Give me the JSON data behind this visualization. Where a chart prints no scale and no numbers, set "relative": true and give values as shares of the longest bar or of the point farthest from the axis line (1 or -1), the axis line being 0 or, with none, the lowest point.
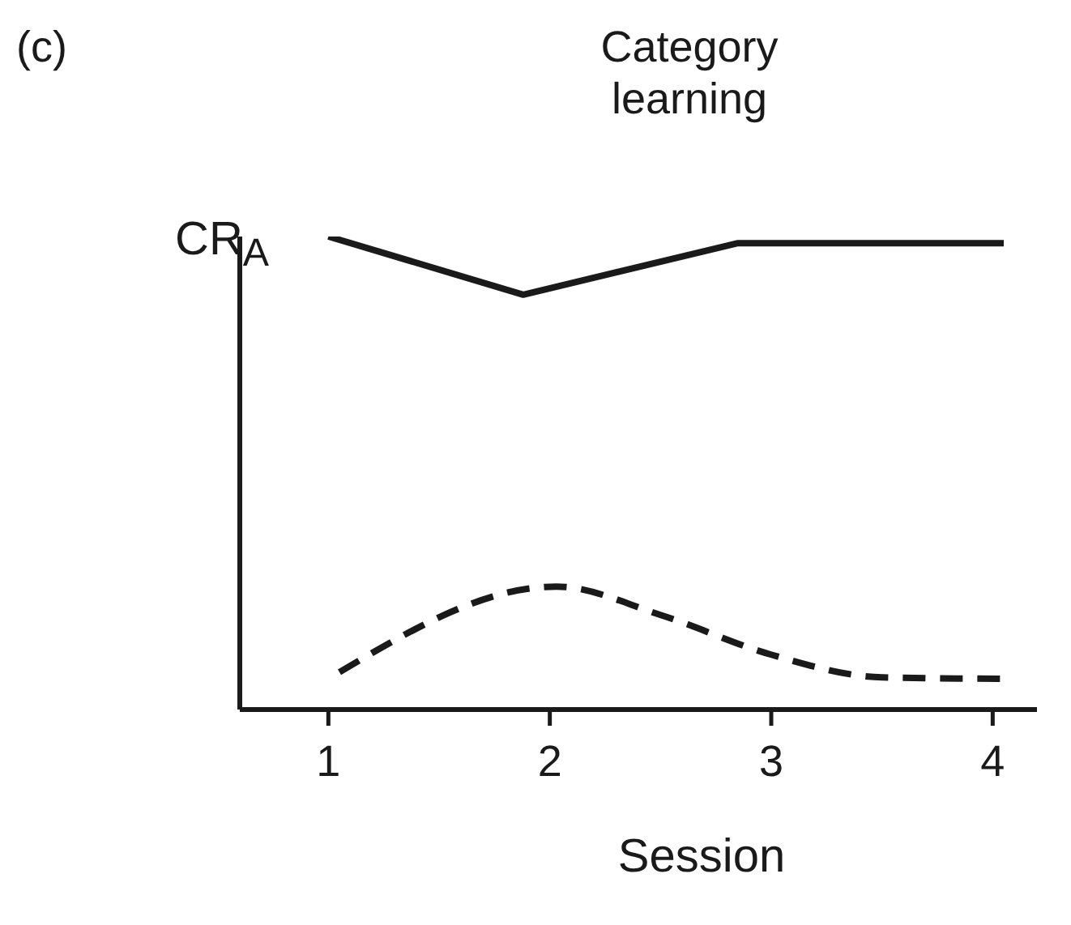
{
  "chart_data": {
    "type": "line",
    "title": "Category learning",
    "xlabel": "Session",
    "ylabel": "CR$_{A}$",
    "annotations": [
      "(c)"
    ],
    "relative": true,
    "xlim": [
      0.6,
      4.2
    ],
    "xticks": [
      1,
      2,
      3,
      4
    ],
    "grid": false,
    "legend": false,
    "marker": "none",
    "series": [
      {
        "color": "#1a1a1a",
        "line_style": "solid",
        "x": [
          1,
          1.88,
          2.85,
          4.05
        ],
        "values": [
          1,
          0.877,
          0.986,
          0.986
        ]
      },
      {
        "color": "#1a1a1a",
        "line_style": "dashed",
        "x": [
          1.05,
          2.03,
          2.5,
          3.0,
          3.5,
          4.05
        ],
        "values": [
          0.079,
          0.26,
          0.2,
          0.116,
          0.068,
          0.065
        ]
      }
    ]
  }
}
